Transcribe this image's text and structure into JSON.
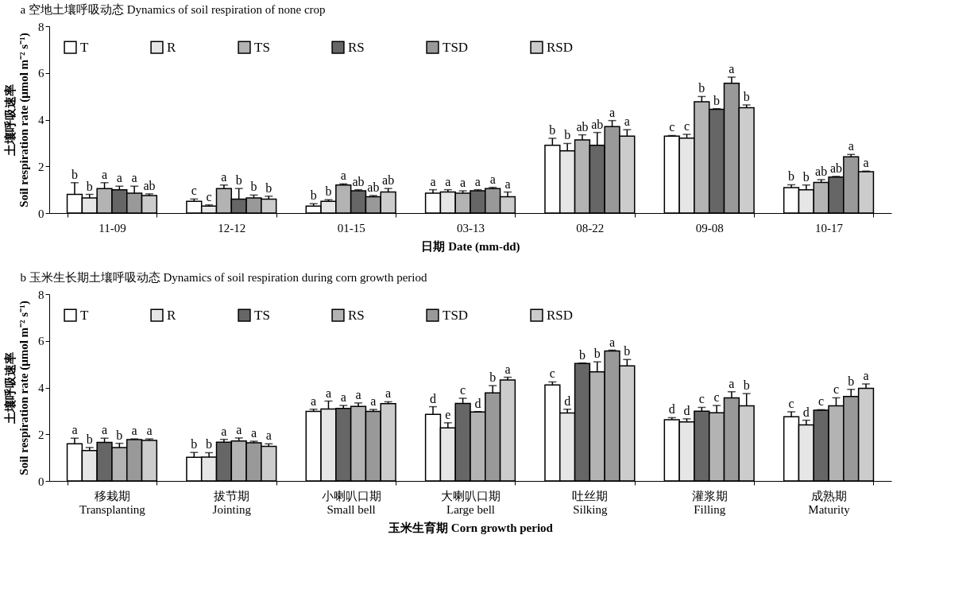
{
  "chart_data": [
    {
      "type": "bar",
      "title": "a 空地土壤呼吸动态 Dynamics of soil respiration of none crop",
      "xlabel": "日期 Date (mm-dd)",
      "ylabel": "土壤呼吸速率\nSoil respiration rate (μmol m⁻² s⁻¹)",
      "categories": [
        "11-09",
        "12-12",
        "01-15",
        "03-13",
        "08-22",
        "09-08",
        "10-17"
      ],
      "ylim": [
        0,
        8
      ],
      "yticks": [
        0,
        2,
        4,
        6,
        8
      ],
      "grid": false,
      "legend": "top left",
      "series": [
        {
          "name": "T",
          "color": "#ffffff",
          "values": [
            0.8,
            0.5,
            0.3,
            0.85,
            2.9,
            3.29,
            1.09
          ],
          "errors": [
            0.5,
            0.1,
            0.1,
            0.15,
            0.3,
            0.03,
            0.12
          ],
          "value_labels": [
            "b",
            "c",
            "b",
            "a",
            "b",
            "c",
            "b"
          ]
        },
        {
          "name": "R",
          "color": "#e6e6e6",
          "values": [
            0.65,
            0.3,
            0.5,
            0.9,
            2.66,
            3.21,
            1.0
          ],
          "errors": [
            0.15,
            0.05,
            0.07,
            0.1,
            0.32,
            0.16,
            0.2
          ],
          "value_labels": [
            "b",
            "c",
            "b",
            "a",
            "b",
            "c",
            "b"
          ]
        },
        {
          "name": "TS",
          "color": "#b3b3b3",
          "values": [
            1.05,
            1.05,
            1.2,
            0.85,
            3.13,
            4.77,
            1.31
          ],
          "errors": [
            0.25,
            0.15,
            0.05,
            0.1,
            0.22,
            0.22,
            0.12
          ],
          "value_labels": [
            "a",
            "a",
            "a",
            "a",
            "ab",
            "b",
            "ab"
          ]
        },
        {
          "name": "RS",
          "color": "#666666",
          "values": [
            1.0,
            0.6,
            0.95,
            0.95,
            2.9,
            4.44,
            1.54
          ],
          "errors": [
            0.15,
            0.45,
            0.05,
            0.05,
            0.55,
            0.03,
            0.03
          ],
          "value_labels": [
            "a",
            "b",
            "ab",
            "a",
            "ab",
            "b",
            "ab"
          ]
        },
        {
          "name": "TSD",
          "color": "#999999",
          "values": [
            0.85,
            0.65,
            0.7,
            1.05,
            3.7,
            5.56,
            2.41
          ],
          "errors": [
            0.3,
            0.12,
            0.05,
            0.05,
            0.26,
            0.26,
            0.1
          ],
          "value_labels": [
            "a",
            "b",
            "ab",
            "a",
            "a",
            "a",
            "a"
          ]
        },
        {
          "name": "RSD",
          "color": "#cccccc",
          "values": [
            0.75,
            0.6,
            0.9,
            0.7,
            3.29,
            4.51,
            1.77
          ],
          "errors": [
            0.07,
            0.12,
            0.15,
            0.2,
            0.28,
            0.12,
            0.03
          ],
          "value_labels": [
            "ab",
            "b",
            "ab",
            "a",
            "a",
            "b",
            "a"
          ]
        }
      ]
    },
    {
      "type": "bar",
      "title": "b 玉米生长期土壤呼吸动态 Dynamics of soil respiration during corn growth period",
      "xlabel": "玉米生育期 Corn growth period",
      "ylabel": "土壤呼吸速率\nSoil respiration rate (μmol m⁻² s⁻¹)",
      "categories": [
        "移栽期\nTransplanting",
        "拔节期\nJointing",
        "小喇叭口期\nSmall bell",
        "大喇叭口期\nLarge bell",
        "吐丝期\nSilking",
        "灌浆期\nFilling",
        "成熟期\nMaturity"
      ],
      "ylim": [
        0,
        8
      ],
      "yticks": [
        0,
        2,
        4,
        6,
        8
      ],
      "grid": false,
      "legend": "top left",
      "series": [
        {
          "name": "T",
          "color": "#ffffff",
          "values": [
            1.59,
            1.01,
            2.98,
            2.85,
            4.11,
            2.62,
            2.75
          ],
          "errors": [
            0.24,
            0.21,
            0.09,
            0.33,
            0.13,
            0.09,
            0.21
          ],
          "value_labels": [
            "a",
            "b",
            "a",
            "d",
            "c",
            "d",
            "c"
          ]
        },
        {
          "name": "R",
          "color": "#e6e6e6",
          "values": [
            1.3,
            1.02,
            3.08,
            2.27,
            2.91,
            2.53,
            2.4
          ],
          "errors": [
            0.13,
            0.19,
            0.34,
            0.22,
            0.16,
            0.13,
            0.2
          ],
          "value_labels": [
            "b",
            "b",
            "a",
            "e",
            "d",
            "d",
            "d"
          ]
        },
        {
          "name": "TS",
          "color": "#666666",
          "values": [
            1.65,
            1.66,
            3.11,
            3.32,
            5.03,
            2.99,
            3.03
          ],
          "errors": [
            0.18,
            0.12,
            0.12,
            0.22,
            0.02,
            0.16,
            0.02
          ],
          "value_labels": [
            "a",
            "a",
            "a",
            "c",
            "b",
            "c",
            "c"
          ]
        },
        {
          "name": "RS",
          "color": "#b3b3b3",
          "values": [
            1.43,
            1.71,
            3.19,
            2.95,
            4.67,
            2.92,
            3.22
          ],
          "errors": [
            0.18,
            0.13,
            0.15,
            0.02,
            0.43,
            0.31,
            0.34
          ],
          "value_labels": [
            "b",
            "a",
            "a",
            "d",
            "b",
            "c",
            "c"
          ]
        },
        {
          "name": "TSD",
          "color": "#999999",
          "values": [
            1.77,
            1.63,
            2.98,
            3.77,
            5.57,
            3.56,
            3.62
          ],
          "errors": [
            0.03,
            0.07,
            0.08,
            0.31,
            0.03,
            0.26,
            0.3
          ],
          "value_labels": [
            "a",
            "a",
            "a",
            "b",
            "a",
            "a",
            "b"
          ]
        },
        {
          "name": "RSD",
          "color": "#cccccc",
          "values": [
            1.74,
            1.48,
            3.31,
            4.32,
            4.93,
            3.22,
            3.97
          ],
          "errors": [
            0.06,
            0.11,
            0.08,
            0.12,
            0.27,
            0.52,
            0.18
          ],
          "value_labels": [
            "a",
            "a",
            "a",
            "a",
            "b",
            "b",
            "a"
          ]
        }
      ]
    }
  ]
}
